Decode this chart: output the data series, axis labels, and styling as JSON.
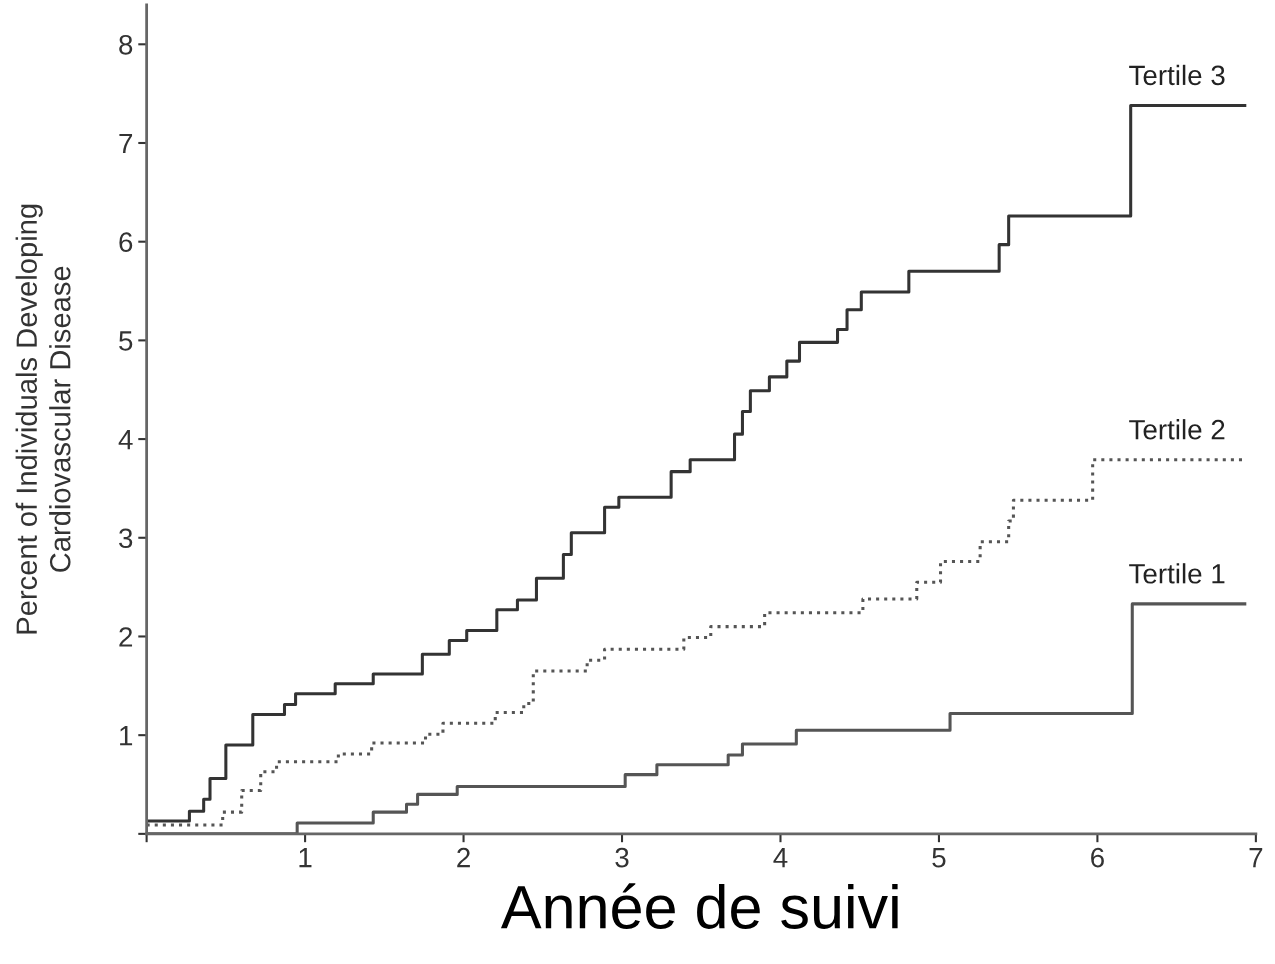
{
  "chart_data": {
    "type": "step",
    "xlabel": "Année de suivi",
    "ylabel": "Percent of Individuals Developing\nCardiovascular Disease",
    "xlim": [
      0,
      7
    ],
    "ylim": [
      0,
      8.4
    ],
    "xticks": [
      {
        "value": 0,
        "label": null
      },
      1,
      2,
      3,
      4,
      5,
      6,
      7
    ],
    "yticks": [
      {
        "value": 0,
        "label": null
      },
      1,
      2,
      3,
      4,
      5,
      6,
      7,
      8
    ],
    "grid": false,
    "legend": false,
    "marker": "none",
    "series": [
      {
        "name": "Tertile 3",
        "color": "#333333",
        "line_style": "solid",
        "x": [
          0,
          0.27,
          0.36,
          0.4,
          0.5,
          0.67,
          0.87,
          0.94,
          1.19,
          1.43,
          1.74,
          1.91,
          2.02,
          2.21,
          2.34,
          2.46,
          2.63,
          2.68,
          2.89,
          2.98,
          3.31,
          3.43,
          3.71,
          3.76,
          3.81,
          3.93,
          4.04,
          4.12,
          4.36,
          4.42,
          4.51,
          4.81,
          5.38,
          5.44,
          6.21,
          6.93
        ],
        "values": [
          0.13,
          0.23,
          0.35,
          0.56,
          0.9,
          1.21,
          1.31,
          1.42,
          1.52,
          1.62,
          1.82,
          1.96,
          2.06,
          2.27,
          2.37,
          2.59,
          2.83,
          3.05,
          3.31,
          3.41,
          3.67,
          3.79,
          4.05,
          4.28,
          4.49,
          4.63,
          4.79,
          4.98,
          5.11,
          5.31,
          5.49,
          5.7,
          5.97,
          6.26,
          7.38,
          7.38
        ]
      },
      {
        "name": "Tertile 2",
        "color": "#555555",
        "line_style": "dotted",
        "x": [
          0,
          0.48,
          0.6,
          0.72,
          0.82,
          1.21,
          1.42,
          1.76,
          1.87,
          2.2,
          2.38,
          2.44,
          2.78,
          2.89,
          3.39,
          3.56,
          3.9,
          4.52,
          4.86,
          5.01,
          5.26,
          5.44,
          5.47,
          5.97,
          6.93
        ],
        "values": [
          0.09,
          0.22,
          0.44,
          0.63,
          0.73,
          0.81,
          0.92,
          1.01,
          1.12,
          1.23,
          1.32,
          1.65,
          1.76,
          1.87,
          1.99,
          2.1,
          2.24,
          2.38,
          2.55,
          2.76,
          2.96,
          3.17,
          3.38,
          3.79,
          3.79
        ]
      },
      {
        "name": "Tertile 1",
        "color": "#555555",
        "line_style": "solid",
        "x": [
          0,
          0.95,
          1.43,
          1.64,
          1.71,
          1.96,
          3.02,
          3.22,
          3.67,
          3.76,
          4.1,
          5.07,
          6.22,
          6.93
        ],
        "values": [
          0,
          0.11,
          0.22,
          0.3,
          0.4,
          0.48,
          0.6,
          0.7,
          0.8,
          0.91,
          1.05,
          1.22,
          2.33,
          2.33
        ]
      }
    ]
  }
}
